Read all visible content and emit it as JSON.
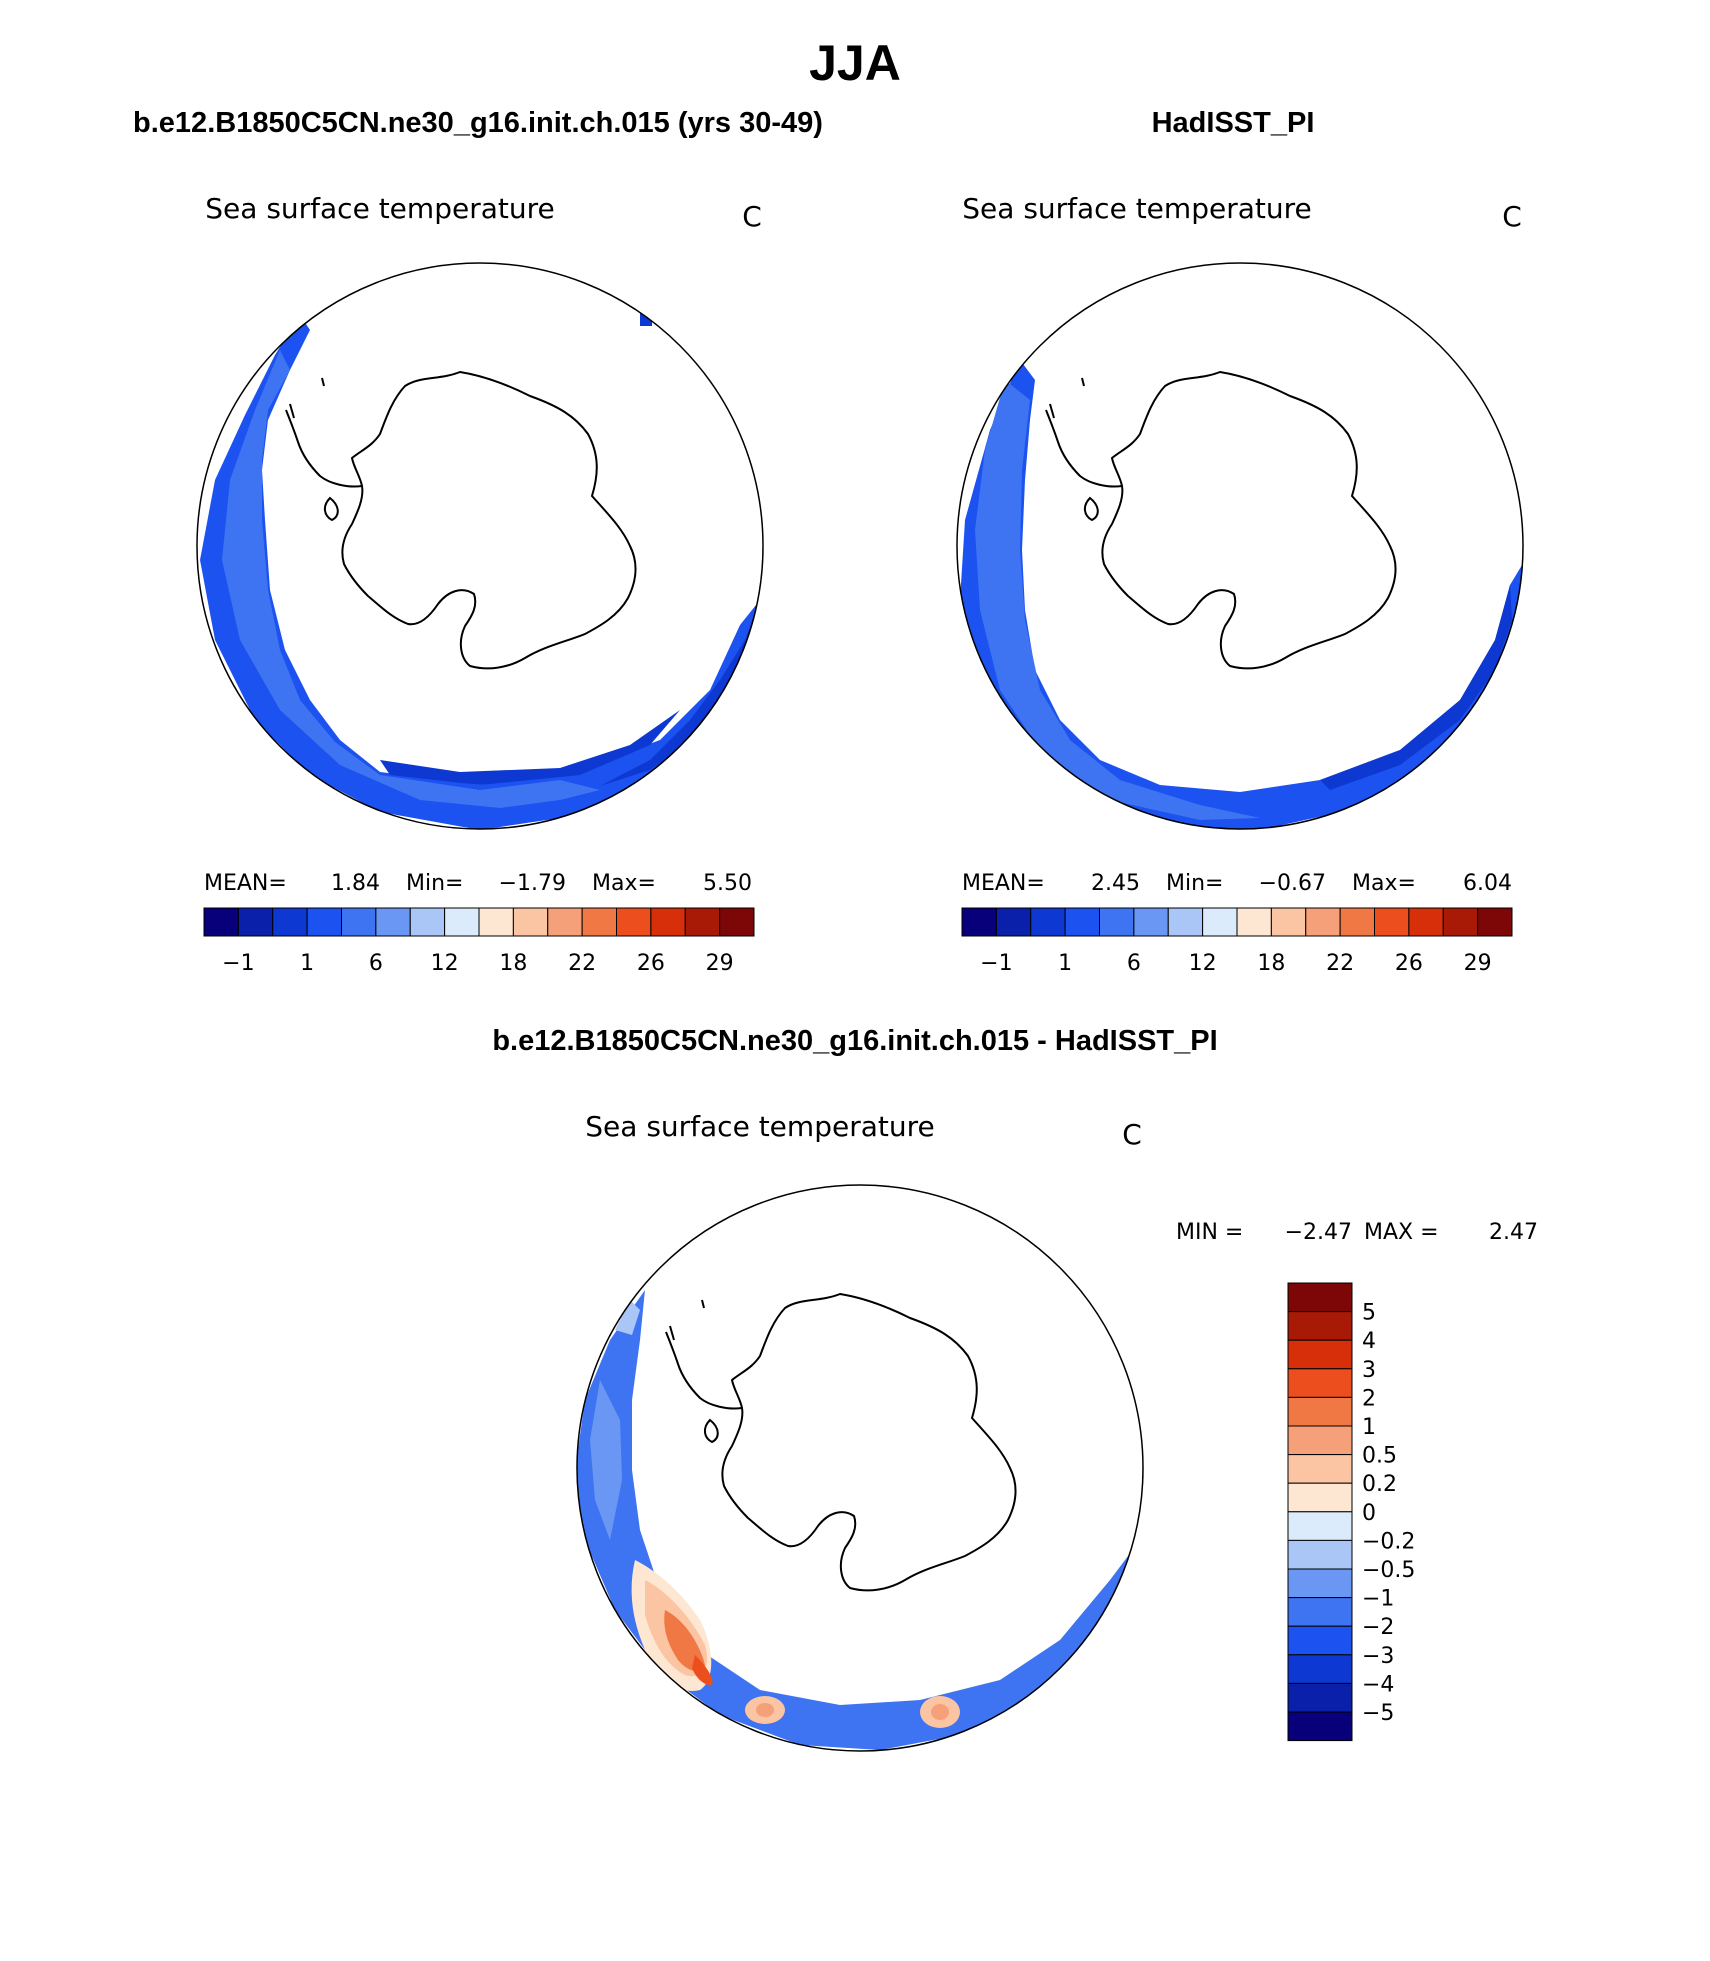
{
  "chart_data": {
    "type": "polar-contour-map",
    "season_title": "JJA",
    "panels": [
      {
        "id": "model",
        "case_title": "b.e12.B1850C5CN.ne30_g16.init.ch.015 (yrs 30-49)",
        "variable": "Sea surface temperature",
        "units": "C",
        "stats": {
          "mean_label": "MEAN=",
          "mean": "1.84",
          "min_label": "Min=",
          "min": "−1.79",
          "max_label": "Max=",
          "max": "5.50"
        },
        "colorbar_ticks": [
          "−1",
          "1",
          "6",
          "12",
          "18",
          "22",
          "26",
          "29"
        ]
      },
      {
        "id": "obs",
        "case_title": "HadISST_PI",
        "variable": "Sea surface temperature",
        "units": "C",
        "stats": {
          "mean_label": "MEAN=",
          "mean": "2.45",
          "min_label": "Min=",
          "min": "−0.67",
          "max_label": "Max=",
          "max": "6.04"
        },
        "colorbar_ticks": [
          "−1",
          "1",
          "6",
          "12",
          "18",
          "22",
          "26",
          "29"
        ]
      },
      {
        "id": "diff",
        "case_title": "b.e12.B1850C5CN.ne30_g16.init.ch.015 - HadISST_PI",
        "variable": "Sea surface temperature",
        "units": "C",
        "stats": {
          "min_label": "MIN =",
          "min": "−2.47",
          "max_label": "MAX =",
          "max": "2.47"
        },
        "colorbar_ticks": [
          "5",
          "4",
          "3",
          "2",
          "1",
          "0.5",
          "0.2",
          "0",
          "−0.2",
          "−0.5",
          "−1",
          "−2",
          "−3",
          "−4",
          "−5"
        ]
      }
    ],
    "colors": {
      "abs_scale": [
        "#08007a",
        "#0a1faa",
        "#0d38d2",
        "#1c52f0",
        "#3e74f2",
        "#6a97f4",
        "#a9c6f7",
        "#dcebfb",
        "#fde6d2",
        "#fbc4a3",
        "#f6a079",
        "#f07845",
        "#ec4e1e",
        "#d62f0a",
        "#a81a06",
        "#7d0707"
      ],
      "diff_scale": [
        "#7d0707",
        "#a81a06",
        "#d62f0a",
        "#ec4e1e",
        "#f07845",
        "#f6a079",
        "#fbc4a3",
        "#fde6d2",
        "#dcebfb",
        "#a9c6f7",
        "#6a97f4",
        "#3e74f2",
        "#1c52f0",
        "#0d38d2",
        "#0a1faa",
        "#08007a"
      ]
    }
  }
}
